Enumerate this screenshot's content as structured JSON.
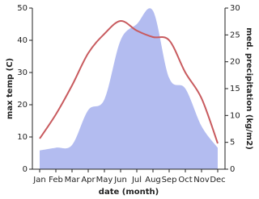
{
  "chart_data": {
    "type": "line-area",
    "categories": [
      "Jan",
      "Feb",
      "Mar",
      "Apr",
      "May",
      "Jun",
      "Jul",
      "Aug",
      "Sep",
      "Oct",
      "Nov",
      "Dec"
    ],
    "x_label": "date (month)",
    "y_label": "max temp (C)",
    "y2_label": "med. precipitation (kg/m2)",
    "ylim": [
      0,
      50
    ],
    "yticks": [
      0,
      10,
      20,
      30,
      40,
      50
    ],
    "y2lim": [
      0,
      30
    ],
    "y2ticks": [
      0,
      5,
      10,
      15,
      20,
      25,
      30
    ],
    "series": [
      {
        "type": "area",
        "axis": "y2",
        "color": "#b3bcf0",
        "values": [
          3.5,
          4,
          4.5,
          11,
          13,
          24,
          27,
          29.5,
          17,
          15,
          8,
          4
        ]
      },
      {
        "type": "line",
        "axis": "y",
        "color": "#c85a5e",
        "values": [
          9.5,
          17,
          26,
          36,
          42,
          46,
          43,
          41,
          40,
          30,
          22,
          8
        ]
      }
    ]
  }
}
